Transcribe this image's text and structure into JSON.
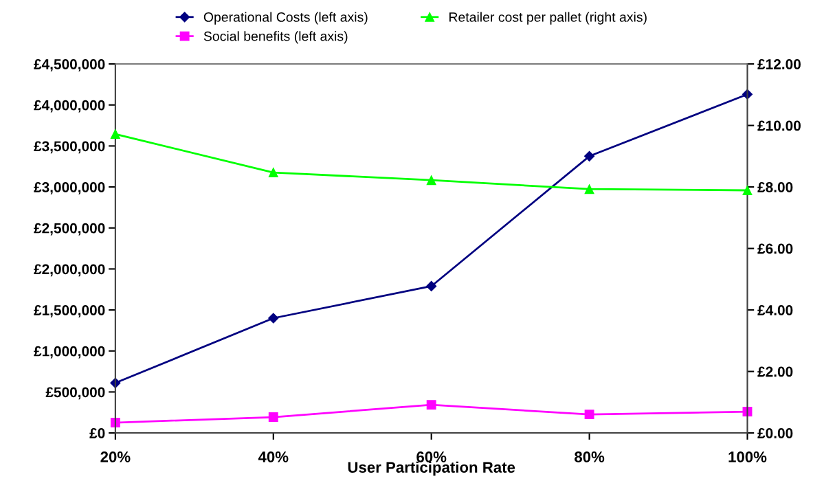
{
  "chart_data": {
    "type": "line",
    "xlabel": "User Participation Rate",
    "categories": [
      "20%",
      "40%",
      "60%",
      "80%",
      "100%"
    ],
    "series": [
      {
        "name": "Operational Costs (left axis)",
        "color": "#000080",
        "marker": "diamond",
        "values": [
          610000,
          1400000,
          1790000,
          3375000,
          4130000
        ]
      },
      {
        "name": "Social benefits (left axis)",
        "color": "#ff00ff",
        "marker": "square",
        "values": [
          126000,
          193000,
          343000,
          226000,
          260000
        ]
      },
      {
        "name": "Retailer cost per pallet (right axis)",
        "color": "#00ff00",
        "marker": "triangle",
        "axis": "y2",
        "values": [
          9.72,
          8.47,
          8.22,
          7.93,
          7.89
        ]
      }
    ],
    "ylim": [
      0,
      4500000
    ],
    "yticks": [
      {
        "value": 0,
        "label": "£0"
      },
      {
        "value": 500000,
        "label": "£500,000"
      },
      {
        "value": 1000000,
        "label": "£1,000,000"
      },
      {
        "value": 1500000,
        "label": "£1,500,000"
      },
      {
        "value": 2000000,
        "label": "£2,000,000"
      },
      {
        "value": 2500000,
        "label": "£2,500,000"
      },
      {
        "value": 3000000,
        "label": "£3,000,000"
      },
      {
        "value": 3500000,
        "label": "£3,500,000"
      },
      {
        "value": 4000000,
        "label": "£4,000,000"
      },
      {
        "value": 4500000,
        "label": "£4,500,000"
      }
    ],
    "y2lim": [
      0,
      12
    ],
    "y2ticks": [
      {
        "value": 0,
        "label": "£0.00"
      },
      {
        "value": 2,
        "label": "£2.00"
      },
      {
        "value": 4,
        "label": "£4.00"
      },
      {
        "value": 6,
        "label": "£6.00"
      },
      {
        "value": 8,
        "label": "£8.00"
      },
      {
        "value": 10,
        "label": "£10.00"
      },
      {
        "value": 12,
        "label": "£12.00"
      }
    ],
    "grid": false,
    "legend": "top",
    "line_style": "solid"
  }
}
